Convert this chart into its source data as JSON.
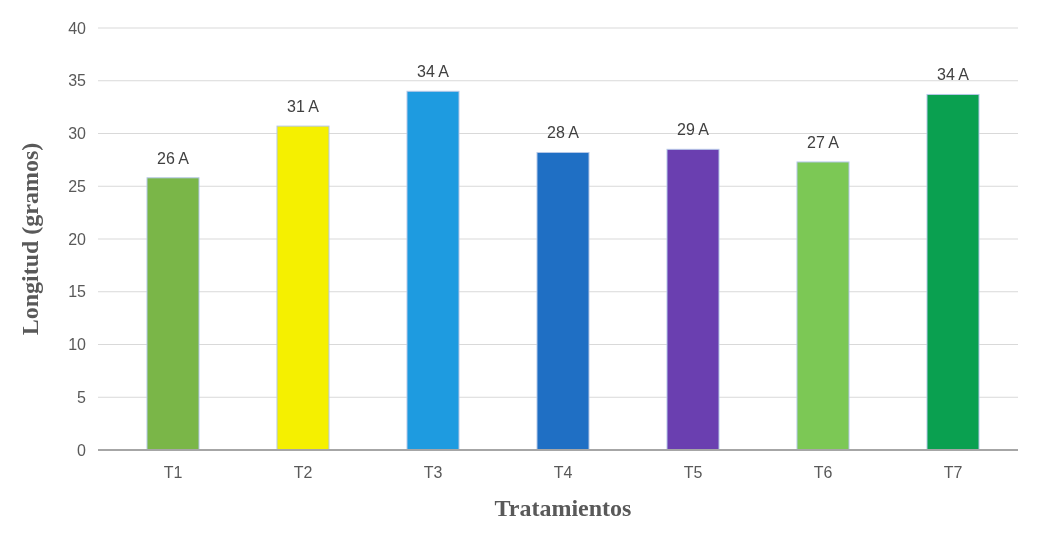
{
  "chart_data": {
    "type": "bar",
    "xlabel": "Tratamientos",
    "ylabel": "Longitud (gramos)",
    "categories": [
      "T1",
      "T2",
      "T3",
      "T4",
      "T5",
      "T6",
      "T7"
    ],
    "values": [
      25.8,
      30.7,
      34.0,
      28.2,
      28.5,
      27.3,
      33.7
    ],
    "value_labels": [
      "26 A",
      "31 A",
      "34 A",
      "28 A",
      "29 A",
      "27 A",
      "34 A"
    ],
    "colors": [
      "#7ab648",
      "#f5f000",
      "#1e9be0",
      "#1f6fc4",
      "#6a3fb0",
      "#7cc855",
      "#0aa050"
    ],
    "ylim": [
      0,
      40
    ],
    "yticks": [
      0,
      5,
      10,
      15,
      20,
      25,
      30,
      35,
      40
    ],
    "grid": "y"
  }
}
